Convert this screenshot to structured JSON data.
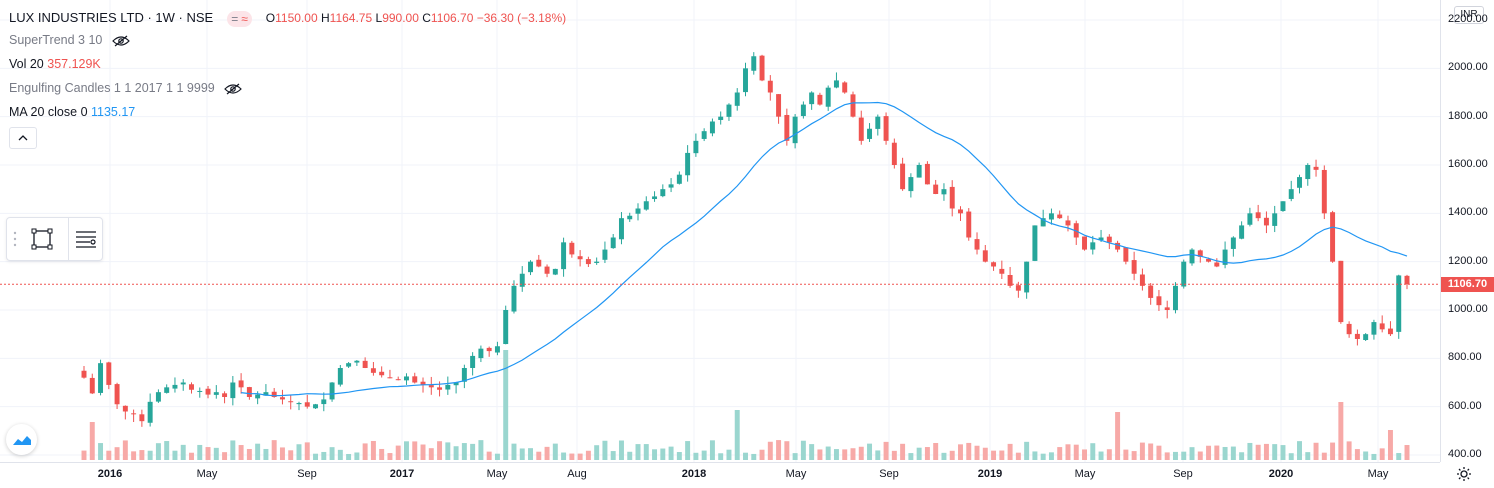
{
  "header": {
    "symbol_title": "LUX INDUSTRIES LTD · 1W · NSE",
    "ohlc": {
      "o_label": "O",
      "o_value": "1150.00",
      "h_label": "H",
      "h_value": "1164.75",
      "l_label": "L",
      "l_value": "990.00",
      "c_label": "C",
      "c_value": "1106.70",
      "change": "−36.30 (−3.18%)"
    },
    "pill_left": "=",
    "pill_right": "≈"
  },
  "indicators": {
    "supertrend": {
      "label": "SuperTrend 3 10",
      "icon": "eye-crossed-icon"
    },
    "volume": {
      "label": "Vol 20",
      "value": "357.129K"
    },
    "engulfing": {
      "label": "Engulfing Candles 1 1 2017 1 1 9999",
      "icon": "eye-crossed-icon"
    },
    "ma": {
      "label": "MA 20 close 0",
      "value": "1135.17"
    }
  },
  "price_axis": {
    "currency": "INR",
    "ticks": [
      "2200.00",
      "2000.00",
      "1800.00",
      "1600.00",
      "1400.00",
      "1200.00",
      "1000.00",
      "800.00",
      "600.00",
      "400.00"
    ],
    "last_price": "1106.70"
  },
  "time_axis": {
    "ticks": [
      {
        "label": "2016",
        "year": true
      },
      {
        "label": "May",
        "year": false
      },
      {
        "label": "Sep",
        "year": false
      },
      {
        "label": "2017",
        "year": true
      },
      {
        "label": "May",
        "year": false
      },
      {
        "label": "Aug",
        "year": false
      },
      {
        "label": "2018",
        "year": true
      },
      {
        "label": "May",
        "year": false
      },
      {
        "label": "Sep",
        "year": false
      },
      {
        "label": "2019",
        "year": true
      },
      {
        "label": "May",
        "year": false
      },
      {
        "label": "Sep",
        "year": false
      },
      {
        "label": "2020",
        "year": true
      },
      {
        "label": "May",
        "year": false
      }
    ]
  },
  "colors": {
    "up": "#26a69a",
    "down": "#ef5350",
    "up_volume": "#9ad6cf",
    "down_volume": "#f7a9a7",
    "ma_line": "#2196f3",
    "grid": "#f0f3fa",
    "last_price_line": "#ef5350"
  },
  "toolbar": {
    "rect_icon": "rectangle-select-icon",
    "lines_icon": "settings-lines-icon",
    "grip_icon": "drag-grip-icon"
  },
  "logo": "tradingview-logo-icon",
  "settings_icon": "gear-icon",
  "chart_data": {
    "type": "candlestick",
    "title": "LUX INDUSTRIES LTD · 1W · NSE",
    "ylim": [
      400,
      2200
    ],
    "last_close": 1106.7,
    "ma_period": 20,
    "weekly_close_path": [
      720,
      655,
      780,
      690,
      610,
      580,
      570,
      540,
      620,
      660,
      680,
      690,
      700,
      670,
      665,
      650,
      660,
      640,
      700,
      680,
      640,
      650,
      660,
      640,
      630,
      620,
      615,
      600,
      610,
      630,
      700,
      760,
      780,
      790,
      760,
      740,
      730,
      720,
      710,
      725,
      700,
      690,
      680,
      670,
      690,
      700,
      760,
      810,
      840,
      830,
      850,
      1000,
      1100,
      1150,
      1200,
      1180,
      1150,
      1170,
      1280,
      1230,
      1210,
      1190,
      1200,
      1250,
      1300,
      1380,
      1390,
      1420,
      1450,
      1470,
      1500,
      1520,
      1560,
      1650,
      1700,
      1740,
      1780,
      1800,
      1850,
      1900,
      2000,
      2050,
      1950,
      1900,
      1800,
      1700,
      1800,
      1850,
      1900,
      1850,
      1920,
      1950,
      1900,
      1800,
      1700,
      1750,
      1800,
      1700,
      1600,
      1500,
      1550,
      1600,
      1520,
      1480,
      1500,
      1420,
      1400,
      1300,
      1250,
      1200,
      1180,
      1150,
      1100,
      1080,
      1200,
      1350,
      1380,
      1400,
      1380,
      1350,
      1300,
      1250,
      1280,
      1300,
      1280,
      1250,
      1200,
      1150,
      1100,
      1050,
      1020,
      1000,
      1100,
      1200,
      1250,
      1220,
      1200,
      1180,
      1250,
      1300,
      1350,
      1400,
      1380,
      1350,
      1400,
      1450,
      1500,
      1550,
      1600,
      1580,
      1400,
      1200,
      950,
      900,
      880,
      900,
      950,
      920,
      900,
      1143,
      1106.7
    ]
  }
}
